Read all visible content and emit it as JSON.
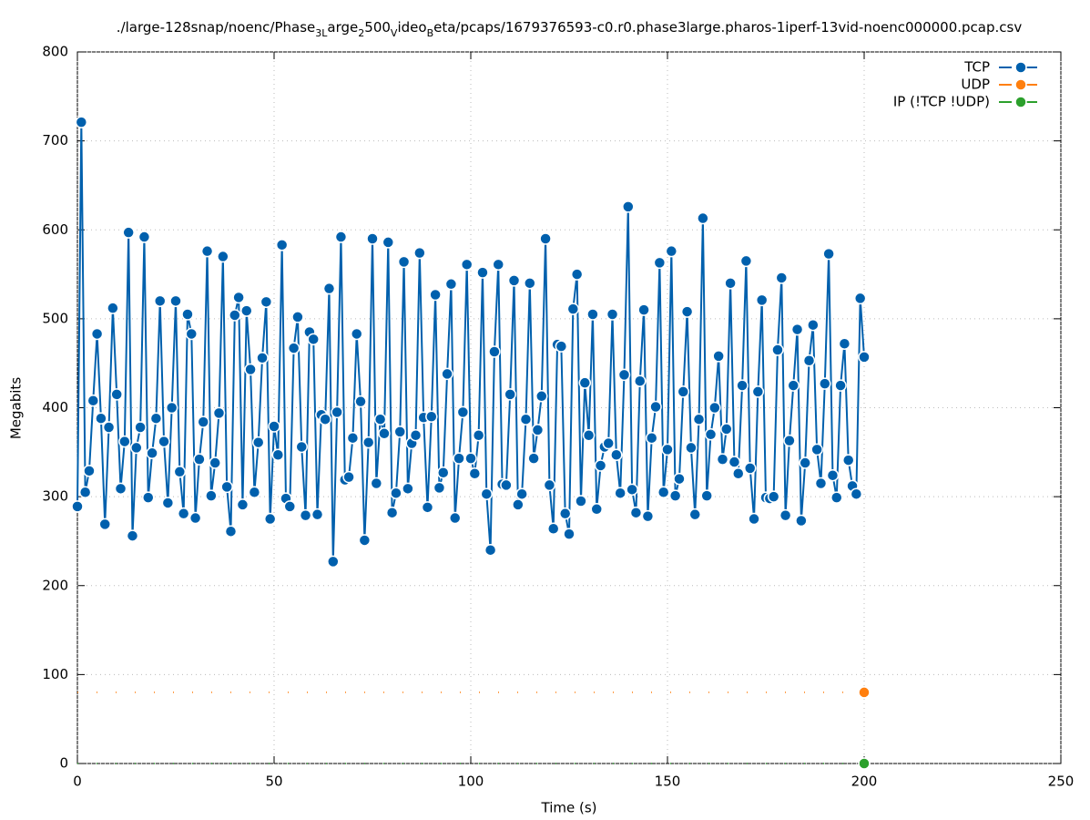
{
  "chart_data": {
    "type": "line",
    "title": [
      "./large-128snap/noenc/Phase",
      "3L",
      "arge",
      "2",
      "500",
      "V",
      "ideo",
      "B",
      "eta/pcaps/1679376593-c0.r0.phase3large.pharos-1iperf-13vid-noenc000000.pcap.csv"
    ],
    "xlabel": "Time (s)",
    "ylabel": "Megabits",
    "xlim": [
      0,
      250
    ],
    "xticks": [
      0,
      50,
      100,
      150,
      200,
      250
    ],
    "ylim": [
      0,
      800
    ],
    "yticks": [
      0,
      100,
      200,
      300,
      400,
      500,
      600,
      700,
      800
    ],
    "grid": true,
    "legend": "top-right",
    "x": [
      0,
      1,
      2,
      3,
      4,
      5,
      6,
      7,
      8,
      9,
      10,
      11,
      12,
      13,
      14,
      15,
      16,
      17,
      18,
      19,
      20,
      21,
      22,
      23,
      24,
      25,
      26,
      27,
      28,
      29,
      30,
      31,
      32,
      33,
      34,
      35,
      36,
      37,
      38,
      39,
      40,
      41,
      42,
      43,
      44,
      45,
      46,
      47,
      48,
      49,
      50,
      51,
      52,
      53,
      54,
      55,
      56,
      57,
      58,
      59,
      60,
      61,
      62,
      63,
      64,
      65,
      66,
      67,
      68,
      69,
      70,
      71,
      72,
      73,
      74,
      75,
      76,
      77,
      78,
      79,
      80,
      81,
      82,
      83,
      84,
      85,
      86,
      87,
      88,
      89,
      90,
      91,
      92,
      93,
      94,
      95,
      96,
      97,
      98,
      99,
      100,
      101,
      102,
      103,
      104,
      105,
      106,
      107,
      108,
      109,
      110,
      111,
      112,
      113,
      114,
      115,
      116,
      117,
      118,
      119,
      120,
      121,
      122,
      123,
      124,
      125,
      126,
      127,
      128,
      129,
      130,
      131,
      132,
      133,
      134,
      135,
      136,
      137,
      138,
      139,
      140,
      141,
      142,
      143,
      144,
      145,
      146,
      147,
      148,
      149,
      150,
      151,
      152,
      153,
      154,
      155,
      156,
      157,
      158,
      159,
      160,
      161,
      162,
      163,
      164,
      165,
      166,
      167,
      168,
      169,
      170,
      171,
      172,
      173,
      174,
      175,
      176,
      177,
      178,
      179,
      180,
      181,
      182,
      183,
      184,
      185,
      186,
      187,
      188,
      189,
      190,
      191,
      192,
      193,
      194,
      195,
      196,
      197,
      198,
      199,
      200
    ],
    "series": [
      {
        "name": "TCP",
        "color": "#0060ad",
        "markers": "all",
        "values": [
          289,
          721,
          305,
          329,
          408,
          483,
          388,
          269,
          378,
          512,
          415,
          309,
          362,
          597,
          256,
          355,
          378,
          592,
          299,
          349,
          388,
          520,
          362,
          293,
          400,
          520,
          328,
          281,
          505,
          483,
          276,
          342,
          384,
          576,
          301,
          338,
          394,
          570,
          311,
          261,
          504,
          524,
          291,
          509,
          443,
          305,
          361,
          456,
          519,
          275,
          379,
          347,
          583,
          298,
          289,
          467,
          502,
          356,
          279,
          485,
          477,
          280,
          392,
          387,
          534,
          227,
          395,
          592,
          319,
          322,
          366,
          483,
          407,
          251,
          361,
          590,
          315,
          387,
          371,
          586,
          282,
          304,
          373,
          564,
          309,
          360,
          369,
          574,
          389,
          288,
          390,
          527,
          310,
          327,
          438,
          539,
          276,
          343,
          395,
          561,
          343,
          326,
          369,
          552,
          303,
          240,
          463,
          561,
          314,
          313,
          415,
          543,
          291,
          303,
          387,
          540,
          343,
          375,
          413,
          590,
          313,
          264,
          471,
          469,
          281,
          258,
          511,
          550,
          295,
          428,
          369,
          505,
          286,
          335,
          356,
          360,
          505,
          347,
          304,
          437,
          626,
          308,
          282,
          430,
          510,
          278,
          366,
          401,
          563,
          305,
          353,
          576,
          301,
          320,
          418,
          508,
          355,
          280,
          387,
          613,
          301,
          370,
          400,
          458,
          342,
          376,
          540,
          339,
          326,
          425,
          565,
          332,
          275,
          418,
          521,
          299,
          298,
          300,
          465,
          546,
          279,
          363,
          425,
          488,
          273,
          338,
          453,
          493,
          353,
          315,
          427,
          573,
          324,
          299,
          425,
          472,
          341,
          312,
          303,
          523,
          457
        ]
      },
      {
        "name": "UDP",
        "color": "#ff7f0e",
        "markers": "last",
        "values": [
          80,
          80,
          80,
          80,
          80,
          80,
          80,
          80,
          80,
          80,
          80,
          80,
          80,
          80,
          80,
          80,
          80,
          80,
          80,
          80,
          80,
          80,
          80,
          80,
          80,
          80,
          80,
          80,
          80,
          80,
          80,
          80,
          80,
          80,
          80,
          80,
          80,
          80,
          80,
          80,
          80,
          80,
          80,
          80,
          80,
          80,
          80,
          80,
          80,
          80,
          80,
          80,
          80,
          80,
          80,
          80,
          80,
          80,
          80,
          80,
          80,
          80,
          80,
          80,
          80,
          80,
          80,
          80,
          80,
          80,
          80,
          80,
          80,
          80,
          80,
          80,
          80,
          80,
          80,
          80,
          80,
          80,
          80,
          80,
          80,
          80,
          80,
          80,
          80,
          80,
          80,
          80,
          80,
          80,
          80,
          80,
          80,
          80,
          80,
          80,
          80,
          80,
          80,
          80,
          80,
          80,
          80,
          80,
          80,
          80,
          80,
          80,
          80,
          80,
          80,
          80,
          80,
          80,
          80,
          80,
          80,
          80,
          80,
          80,
          80,
          80,
          80,
          80,
          80,
          80,
          80,
          80,
          80,
          80,
          80,
          80,
          80,
          80,
          80,
          80,
          80,
          80,
          80,
          80,
          80,
          80,
          80,
          80,
          80,
          80,
          80,
          80,
          80,
          80,
          80,
          80,
          80,
          80,
          80,
          80,
          80,
          80,
          80,
          80,
          80,
          80,
          80,
          80,
          80,
          80,
          80,
          80,
          80,
          80,
          80,
          80,
          80,
          80,
          80,
          80,
          80,
          80,
          80,
          80,
          80,
          80,
          80,
          80,
          80,
          80,
          80,
          80,
          80,
          80,
          80,
          80,
          80,
          80,
          80,
          80,
          80
        ]
      },
      {
        "name": "IP (!TCP  !UDP)",
        "color": "#2ca02c",
        "markers": "last",
        "values": [
          0,
          0,
          0,
          0,
          0,
          0,
          0,
          0,
          0,
          0,
          0,
          0,
          0,
          0,
          0,
          0,
          0,
          0,
          0,
          0,
          0,
          0,
          0,
          0,
          0,
          0,
          0,
          0,
          0,
          0,
          0,
          0,
          0,
          0,
          0,
          0,
          0,
          0,
          0,
          0,
          0,
          0,
          0,
          0,
          0,
          0,
          0,
          0,
          0,
          0,
          0,
          0,
          0,
          0,
          0,
          0,
          0,
          0,
          0,
          0,
          0,
          0,
          0,
          0,
          0,
          0,
          0,
          0,
          0,
          0,
          0,
          0,
          0,
          0,
          0,
          0,
          0,
          0,
          0,
          0,
          0,
          0,
          0,
          0,
          0,
          0,
          0,
          0,
          0,
          0,
          0,
          0,
          0,
          0,
          0,
          0,
          0,
          0,
          0,
          0,
          0,
          0,
          0,
          0,
          0,
          0,
          0,
          0,
          0,
          0,
          0,
          0,
          0,
          0,
          0,
          0,
          0,
          0,
          0,
          0,
          0,
          0,
          0,
          0,
          0,
          0,
          0,
          0,
          0,
          0,
          0,
          0,
          0,
          0,
          0,
          0,
          0,
          0,
          0,
          0,
          0,
          0,
          0,
          0,
          0,
          0,
          0,
          0,
          0,
          0,
          0,
          0,
          0,
          0,
          0,
          0,
          0,
          0,
          0,
          0,
          0,
          0,
          0,
          0,
          0,
          0,
          0,
          0,
          0,
          0,
          0,
          0,
          0,
          0,
          0,
          0,
          0,
          0,
          0,
          0,
          0,
          0,
          0,
          0,
          0,
          0,
          0,
          0,
          0,
          0,
          0,
          0,
          0,
          0,
          0,
          0,
          0,
          0,
          0,
          0,
          0
        ]
      }
    ]
  }
}
